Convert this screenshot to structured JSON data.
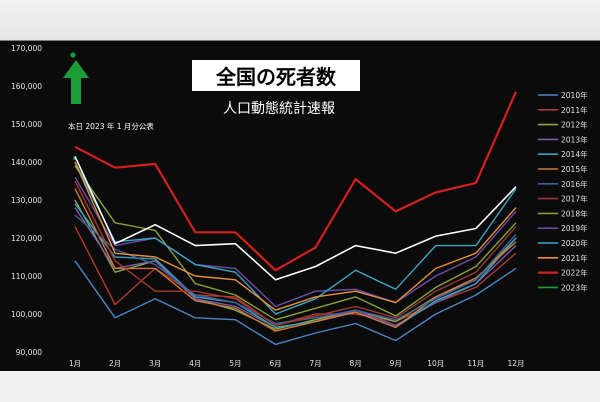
{
  "chart_data": {
    "type": "line",
    "title": "全国の死者数",
    "subtitle": "人口動態統計速報",
    "annotation": "本日 2023 年 1 月分公表",
    "categories": [
      "1月",
      "2月",
      "3月",
      "4月",
      "5月",
      "6月",
      "7月",
      "8月",
      "9月",
      "10月",
      "11月",
      "12月"
    ],
    "y_ticks": [
      "90,000",
      "100,000",
      "110,000",
      "120,000",
      "130,000",
      "140,000",
      "150,000",
      "160,000",
      "170,000"
    ],
    "ylim": [
      90000,
      170000
    ],
    "grid": false,
    "legend_position": "right",
    "colors": {
      "background": "#0b0b0b",
      "text": "#e6e6e6",
      "arrow": "#1a9e3a",
      "title_box": "#ffffff"
    },
    "series": [
      {
        "name": "2010年",
        "color": "#4a86c5",
        "values": [
          114000,
          99000,
          104000,
          99000,
          98500,
          92000,
          95000,
          97500,
          93000,
          100000,
          105000,
          112000
        ]
      },
      {
        "name": "2011年",
        "color": "#b03a2e",
        "values": [
          123000,
          102500,
          112000,
          105000,
          104500,
          97000,
          100000,
          100000,
          98000,
          103000,
          107000,
          116000
        ]
      },
      {
        "name": "2012年",
        "color": "#8aa64a",
        "values": [
          130000,
          111000,
          114000,
          104000,
          101000,
          96000,
          98500,
          101000,
          98000,
          104500,
          109000,
          120000
        ]
      },
      {
        "name": "2013年",
        "color": "#7a5ca8",
        "values": [
          128000,
          112000,
          114000,
          104000,
          102000,
          96500,
          98000,
          101000,
          97000,
          103000,
          108000,
          118000
        ]
      },
      {
        "name": "2014年",
        "color": "#3aa0bf",
        "values": [
          129000,
          115000,
          114500,
          104500,
          103000,
          96500,
          98000,
          100500,
          96500,
          103500,
          108000,
          120000
        ]
      },
      {
        "name": "2015年",
        "color": "#d07a3a",
        "values": [
          133000,
          112000,
          112000,
          103500,
          101500,
          95500,
          98000,
          100500,
          96500,
          104500,
          109500,
          119000
        ]
      },
      {
        "name": "2016年",
        "color": "#3f5f9a",
        "values": [
          126000,
          117000,
          113000,
          105000,
          103000,
          97500,
          99000,
          101000,
          98500,
          104000,
          109000,
          121000
        ]
      },
      {
        "name": "2017年",
        "color": "#9c3a2f",
        "values": [
          135000,
          114000,
          106000,
          106000,
          104000,
          97000,
          99500,
          102000,
          99000,
          106000,
          111000,
          123000
        ]
      },
      {
        "name": "2018年",
        "color": "#8aa03a",
        "values": [
          139000,
          124000,
          122000,
          108000,
          105000,
          98500,
          101500,
          104500,
          99500,
          107000,
          112500,
          124000
        ]
      },
      {
        "name": "2019年",
        "color": "#6a4ea8",
        "values": [
          136000,
          118000,
          120000,
          113000,
          112000,
          102000,
          106000,
          106500,
          103000,
          110000,
          115000,
          127000
        ]
      },
      {
        "name": "2020年",
        "color": "#3aa6c6",
        "values": [
          140000,
          119000,
          120000,
          113000,
          111000,
          100000,
          104000,
          111500,
          106500,
          118000,
          118000,
          133000
        ]
      },
      {
        "name": "2021年",
        "color": "#e8913a",
        "values": [
          140000,
          116000,
          115000,
          110000,
          109000,
          101000,
          104500,
          106000,
          103000,
          112000,
          116000,
          128000
        ]
      },
      {
        "name": "2022年",
        "color": "#d42020",
        "values": [
          144000,
          138500,
          139500,
          121500,
          121500,
          111500,
          117500,
          135500,
          127000,
          132000,
          134500,
          158500
        ]
      },
      {
        "name": "2023年",
        "color": "#1a9e3a",
        "values": [
          141000,
          null,
          null,
          null,
          null,
          null,
          null,
          null,
          null,
          null,
          null,
          null
        ]
      },
      {
        "name": "",
        "color": "#ffffff",
        "values": [
          141500,
          118500,
          123500,
          118000,
          118500,
          109000,
          112500,
          118000,
          116000,
          120500,
          122500,
          133500
        ]
      }
    ]
  }
}
